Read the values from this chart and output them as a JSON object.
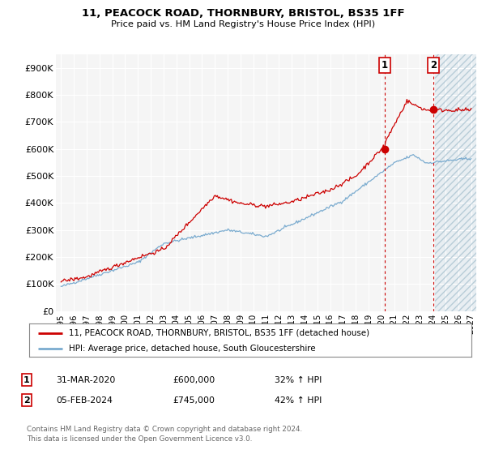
{
  "title": "11, PEACOCK ROAD, THORNBURY, BRISTOL, BS35 1FF",
  "subtitle": "Price paid vs. HM Land Registry's House Price Index (HPI)",
  "ylim": [
    0,
    950000
  ],
  "yticks": [
    0,
    100000,
    200000,
    300000,
    400000,
    500000,
    600000,
    700000,
    800000,
    900000
  ],
  "ytick_labels": [
    "£0",
    "£100K",
    "£200K",
    "£300K",
    "£400K",
    "£500K",
    "£600K",
    "£700K",
    "£800K",
    "£900K"
  ],
  "red_line_color": "#cc0000",
  "blue_line_color": "#7aabcf",
  "marker1_price": 600000,
  "marker2_price": 745000,
  "marker1_year": 2020.25,
  "marker2_year": 2024.09,
  "legend_line1": "11, PEACOCK ROAD, THORNBURY, BRISTOL, BS35 1FF (detached house)",
  "legend_line2": "HPI: Average price, detached house, South Gloucestershire",
  "footer": "Contains HM Land Registry data © Crown copyright and database right 2024.\nThis data is licensed under the Open Government Licence v3.0.",
  "bg_color": "#f5f5f5",
  "hatch_bg": "#dce8f0",
  "xlim_start": 1994.6,
  "xlim_end": 2027.4
}
